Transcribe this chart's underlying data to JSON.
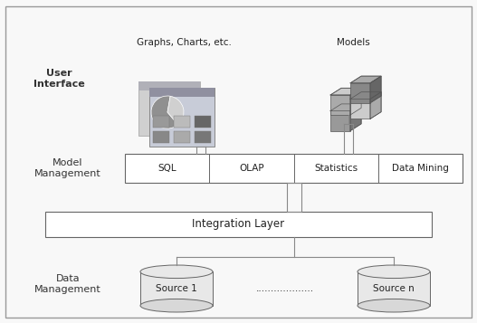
{
  "bg_color": "#f8f8f8",
  "border_color": "#999999",
  "box_color": "#ffffff",
  "box_edge_color": "#666666",
  "text_color": "#222222",
  "label_color": "#333333",
  "model_mgmt_boxes": [
    "SQL",
    "OLAP",
    "Statistics",
    "Data Mining"
  ],
  "integration_label": "Integration Layer",
  "user_interface_label": "User\nInterface",
  "model_mgmt_label": "Model\nManagement",
  "data_mgmt_label": "Data\nManagement",
  "graphs_label": "Graphs, Charts, etc.",
  "models_label": "Models",
  "source1_label": "Source 1",
  "sourcen_label": "Source n",
  "dots_label": "...................",
  "fig_width": 5.27,
  "fig_height": 3.57,
  "connector_color": "#888888"
}
